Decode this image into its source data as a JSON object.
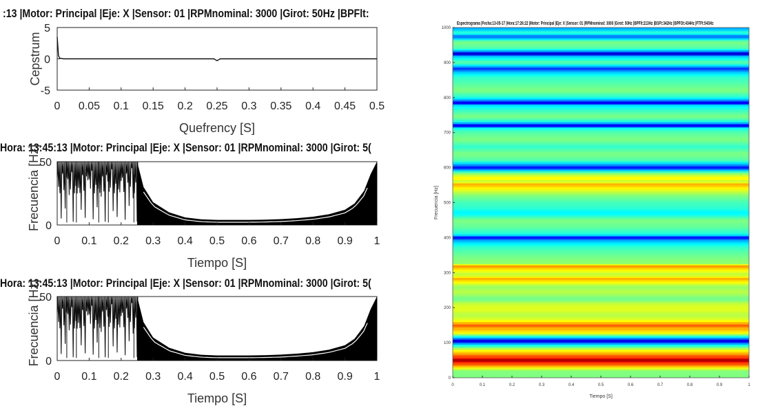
{
  "chart_data": [
    {
      "id": "cepstrum",
      "type": "line",
      "title": ":13 |Motor: Principal |Eje: X |Sensor: 01 |RPMnominal: 3000 |Girot: 50Hz |BPFlt:",
      "xlabel": "Quefrency [S]",
      "ylabel": "Cepstrum",
      "xlim": [
        0,
        0.5
      ],
      "ylim": [
        -5,
        5
      ],
      "x_ticks": [
        "0",
        "0.05",
        "0.1",
        "0.15",
        "0.2",
        "0.25",
        "0.3",
        "0.35",
        "0.4",
        "0.45",
        "0.5"
      ],
      "y_ticks": [
        "5",
        "0",
        "-5"
      ],
      "series": [
        {
          "x": [
            0,
            0.002,
            0.004,
            0.01,
            0.05,
            0.1,
            0.15,
            0.2,
            0.245,
            0.25,
            0.255,
            0.3,
            0.35,
            0.4,
            0.45,
            0.5
          ],
          "y": [
            3.5,
            0.5,
            0.1,
            0,
            0,
            0,
            0,
            0,
            0,
            -0.3,
            0,
            0,
            0,
            0,
            0,
            0
          ]
        }
      ]
    },
    {
      "id": "tf-1",
      "type": "area",
      "title": "Hora: 13:45:13 |Motor: Principal |Eje: X |Sensor: 01 |RPMnominal: 3000 |Girot: 5(",
      "xlabel": "Tiempo [S]",
      "ylabel": "Frecuencia [Hz]",
      "xlim": [
        0,
        1
      ],
      "ylim": [
        0,
        50
      ],
      "x_ticks": [
        "0",
        "0.1",
        "0.2",
        "0.3",
        "0.4",
        "0.5",
        "0.6",
        "0.7",
        "0.8",
        "0.9",
        "1"
      ],
      "y_ticks": [
        "50",
        "0"
      ],
      "envelope_time": [
        0.25,
        0.27,
        0.3,
        0.35,
        0.4,
        0.45,
        0.5,
        0.55,
        0.6,
        0.65,
        0.7,
        0.75,
        0.8,
        0.85,
        0.9,
        0.93,
        0.96,
        0.98,
        1.0
      ],
      "envelope_freq": [
        50,
        30,
        18,
        10,
        6,
        4.5,
        4,
        4,
        4,
        4.2,
        4.6,
        5.4,
        6.5,
        8.5,
        12,
        17,
        27,
        40,
        50
      ]
    },
    {
      "id": "tf-2",
      "type": "area",
      "title": "Hora: 13:45:13 |Motor: Principal |Eje: X |Sensor: 01 |RPMnominal: 3000 |Girot: 5(",
      "xlabel": "Tiempo [S]",
      "ylabel": "Frecuencia [Hz]",
      "xlim": [
        0,
        1
      ],
      "ylim": [
        0,
        50
      ],
      "x_ticks": [
        "0",
        "0.1",
        "0.2",
        "0.3",
        "0.4",
        "0.5",
        "0.6",
        "0.7",
        "0.8",
        "0.9",
        "1"
      ],
      "y_ticks": [
        "50",
        "0"
      ],
      "envelope_time": [
        0.25,
        0.27,
        0.3,
        0.35,
        0.4,
        0.45,
        0.5,
        0.55,
        0.6,
        0.65,
        0.7,
        0.75,
        0.8,
        0.85,
        0.9,
        0.93,
        0.96,
        0.98,
        1.0
      ],
      "envelope_freq": [
        50,
        30,
        18,
        10,
        6,
        4.5,
        4,
        4,
        4,
        4.2,
        4.6,
        5.4,
        6.5,
        8.5,
        12,
        17,
        27,
        40,
        50
      ]
    },
    {
      "id": "spectrogram",
      "type": "heatmap",
      "title": "Espectrograma |Fecha:13-05-17 |Hora:17:26:22 |Motor: Principal |Eje: X |Sensor: 01 |RPMnominal: 3000 |Girot: 50Hz |BPFlt:213Hz |BSFt:342Hz |BPFOt:434Hz |FTFt:543Hz",
      "xlabel": "Tiempo [S]",
      "ylabel": "Frecuencia [Hz]",
      "xlim": [
        0,
        1
      ],
      "ylim": [
        0,
        1000
      ],
      "x_ticks": [
        "0",
        "0.1",
        "0.2",
        "0.3",
        "0.4",
        "0.5",
        "0.6",
        "0.7",
        "0.8",
        "0.9",
        "1"
      ],
      "y_ticks": [
        "0",
        "100",
        "200",
        "300",
        "400",
        "500",
        "600",
        "700",
        "800",
        "900",
        "1000"
      ],
      "band_freq": [
        20,
        40,
        50,
        60,
        80,
        95,
        105,
        112,
        118,
        128,
        140,
        150,
        155,
        165,
        180,
        195,
        210,
        225,
        245,
        260,
        270,
        282,
        295,
        310,
        318,
        326,
        340,
        360,
        375,
        392,
        400,
        410,
        430,
        450,
        470,
        485,
        500,
        520,
        540,
        552,
        560,
        570,
        585,
        600,
        620,
        640,
        660,
        680,
        700,
        712,
        720,
        732,
        745,
        760,
        778,
        785,
        800,
        820,
        840,
        860,
        875,
        882,
        900,
        920,
        925,
        940,
        960,
        975,
        985,
        995
      ],
      "band_level": [
        0.5,
        0.8,
        0.95,
        0.8,
        0.6,
        0.35,
        0.1,
        0.25,
        0.4,
        0.62,
        0.7,
        0.78,
        0.7,
        0.6,
        0.55,
        0.6,
        0.58,
        0.48,
        0.56,
        0.52,
        0.6,
        0.7,
        0.55,
        0.65,
        0.72,
        0.52,
        0.5,
        0.46,
        0.42,
        0.3,
        0.15,
        0.4,
        0.47,
        0.5,
        0.36,
        0.42,
        0.44,
        0.5,
        0.62,
        0.7,
        0.55,
        0.65,
        0.5,
        0.15,
        0.45,
        0.5,
        0.42,
        0.5,
        0.46,
        0.4,
        0.12,
        0.4,
        0.5,
        0.45,
        0.35,
        0.12,
        0.4,
        0.5,
        0.46,
        0.42,
        0.3,
        0.18,
        0.48,
        0.3,
        0.08,
        0.45,
        0.5,
        0.2,
        0.45,
        0.3
      ]
    }
  ]
}
